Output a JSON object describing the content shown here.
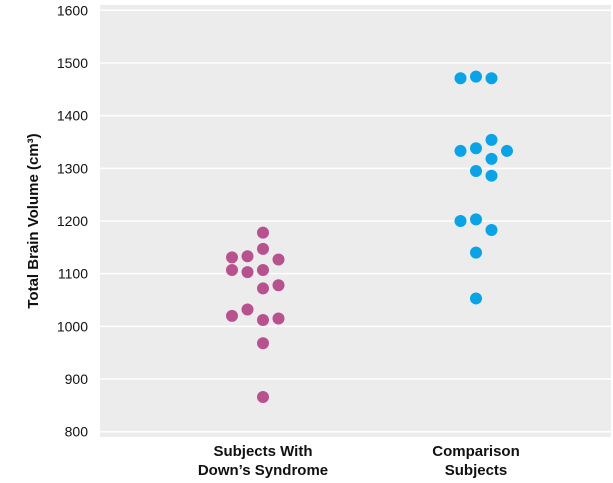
{
  "chart_data": {
    "type": "scatter",
    "title": "",
    "xlabel": "",
    "ylabel": "Total Brain Volume (cm³)",
    "ylim": [
      790,
      1610
    ],
    "yticks": [
      800,
      900,
      1000,
      1100,
      1200,
      1300,
      1400,
      1500,
      1600
    ],
    "grid": true,
    "background_color": "#ececec",
    "grid_color": "#ffffff",
    "categories": [
      {
        "line1": "Subjects With",
        "line2": "Down’s Syndrome"
      },
      {
        "line1": "Comparison",
        "line2": "Subjects"
      }
    ],
    "series": [
      {
        "category": 0,
        "color": "#b8528f",
        "points": [
          {
            "offset": 0,
            "value": 1178
          },
          {
            "offset": -1,
            "value": 1133
          },
          {
            "offset": 0,
            "value": 1147
          },
          {
            "offset": 1,
            "value": 1127
          },
          {
            "offset": -2,
            "value": 1131
          },
          {
            "offset": -2,
            "value": 1107
          },
          {
            "offset": -1,
            "value": 1103
          },
          {
            "offset": 0,
            "value": 1107
          },
          {
            "offset": 0,
            "value": 1072
          },
          {
            "offset": 1,
            "value": 1078
          },
          {
            "offset": -2,
            "value": 1020
          },
          {
            "offset": -1,
            "value": 1032
          },
          {
            "offset": 0,
            "value": 1012
          },
          {
            "offset": 1,
            "value": 1015
          },
          {
            "offset": 0,
            "value": 968
          },
          {
            "offset": 0,
            "value": 866
          }
        ]
      },
      {
        "category": 1,
        "color": "#0aa4e6",
        "points": [
          {
            "offset": -1,
            "value": 1471
          },
          {
            "offset": 0,
            "value": 1474
          },
          {
            "offset": 1,
            "value": 1471
          },
          {
            "offset": 1,
            "value": 1354
          },
          {
            "offset": -1,
            "value": 1333
          },
          {
            "offset": 0,
            "value": 1338
          },
          {
            "offset": 2,
            "value": 1333
          },
          {
            "offset": 1,
            "value": 1318
          },
          {
            "offset": 0,
            "value": 1295
          },
          {
            "offset": 1,
            "value": 1286
          },
          {
            "offset": -1,
            "value": 1200
          },
          {
            "offset": 0,
            "value": 1203
          },
          {
            "offset": 1,
            "value": 1183
          },
          {
            "offset": 0,
            "value": 1140
          },
          {
            "offset": 0,
            "value": 1053
          }
        ]
      }
    ]
  }
}
